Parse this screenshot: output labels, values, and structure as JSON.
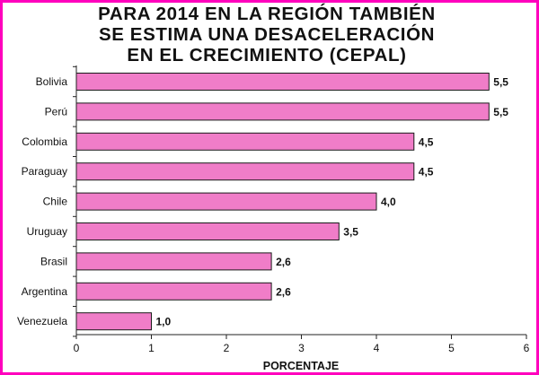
{
  "chart_data": {
    "type": "bar",
    "orientation": "horizontal",
    "title_lines": [
      "PARA 2014 EN LA REGIÓN TAMBIÉN",
      "SE ESTIMA UNA DESACELERACIÓN",
      "EN EL CRECIMIENTO (CEPAL)"
    ],
    "categories": [
      "Bolivia",
      "Perú",
      "Colombia",
      "Paraguay",
      "Chile",
      "Uruguay",
      "Brasil",
      "Argentina",
      "Venezuela"
    ],
    "values": [
      5.5,
      5.5,
      4.5,
      4.5,
      4.0,
      3.5,
      2.6,
      2.6,
      1.0
    ],
    "value_labels": [
      "5,5",
      "5,5",
      "4,5",
      "4,5",
      "4,0",
      "3,5",
      "2,6",
      "2,6",
      "1,0"
    ],
    "highlight_index": 0,
    "xlabel": "PORCENTAJE",
    "ylabel": "",
    "xlim": [
      0,
      6
    ],
    "xticks": [
      "0",
      "1",
      "2",
      "3",
      "4",
      "5",
      "6"
    ],
    "grid": false,
    "colors": {
      "bar": "#f07dc8",
      "bar_edge": "#1a1a1a",
      "highlight_label": "#c8201e",
      "border": "#ff00bd"
    }
  }
}
